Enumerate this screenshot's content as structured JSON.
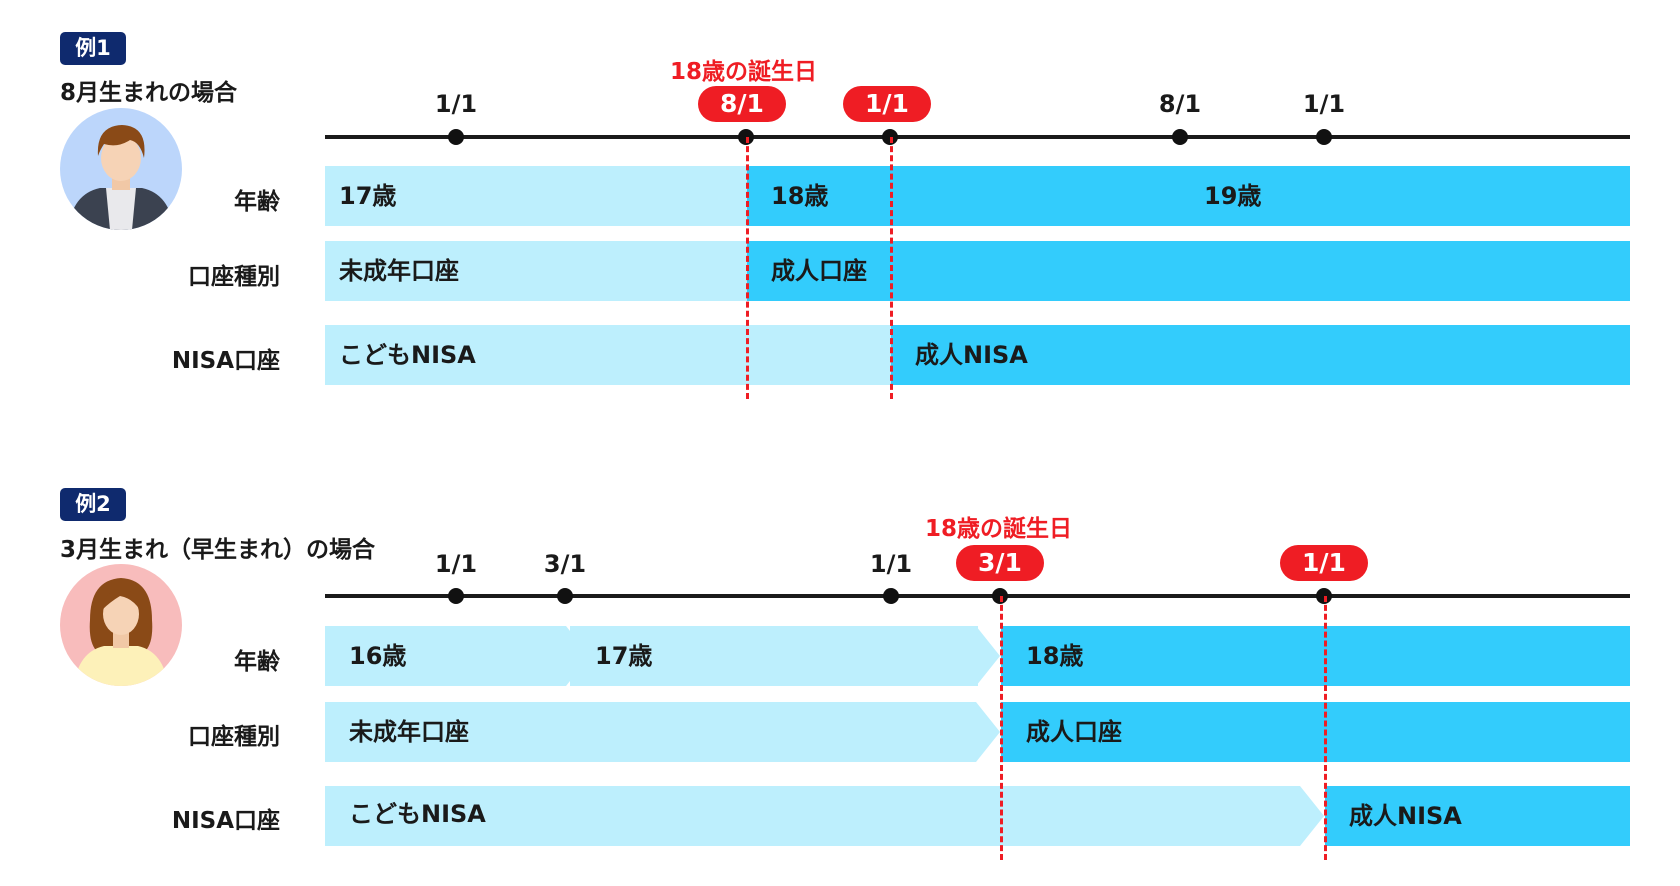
{
  "colors": {
    "accent_red": "#ef1d24",
    "navy": "#0f2a6e",
    "light_blue": "#bdeffd",
    "blue": "#33ccfc"
  },
  "row_labels": {
    "age": "年齢",
    "account_type": "口座種別",
    "nisa": "NISA口座"
  },
  "example1": {
    "tag": "例1",
    "subtitle": "8月生まれの場合",
    "birthday_label": "18歳の誕生日",
    "ticks": [
      "1/1",
      "8/1",
      "1/1",
      "8/1",
      "1/1"
    ],
    "highlight_labels": [
      "8/1",
      "1/1"
    ],
    "avatar_icon": "male-avatar-icon",
    "age": [
      "17歳",
      "18歳",
      "19歳"
    ],
    "account": [
      "未成年口座",
      "成人口座"
    ],
    "nisa": [
      "こどもNISA",
      "成人NISA"
    ]
  },
  "example2": {
    "tag": "例2",
    "subtitle": "3月生まれ（早生まれ）の場合",
    "birthday_label": "18歳の誕生日",
    "ticks": [
      "1/1",
      "3/1",
      "1/1",
      "3/1",
      "1/1"
    ],
    "highlight_labels": [
      "3/1",
      "1/1"
    ],
    "avatar_icon": "female-avatar-icon",
    "age": [
      "16歳",
      "17歳",
      "18歳"
    ],
    "account": [
      "未成年口座",
      "成人口座"
    ],
    "nisa": [
      "こどもNISA",
      "成人NISA"
    ]
  }
}
